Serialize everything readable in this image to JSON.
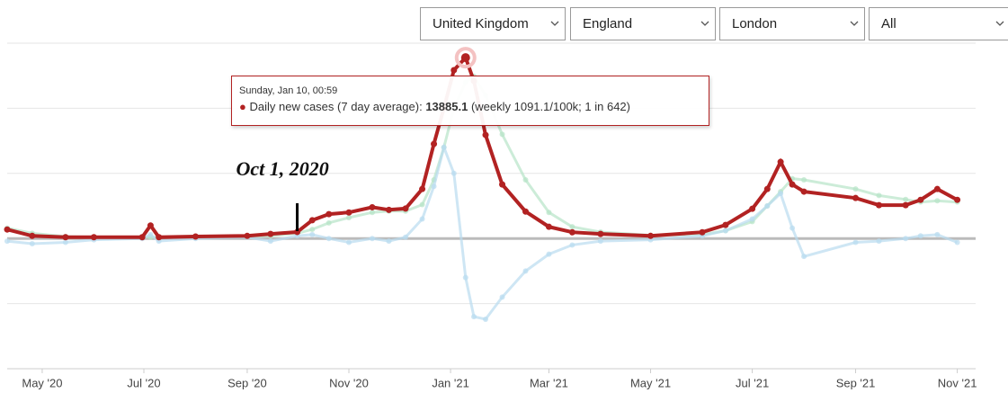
{
  "filters": [
    "United Kingdom",
    "England",
    "London",
    "All"
  ],
  "tooltip": {
    "date": "Sunday, Jan 10, 00:59",
    "label": "Daily new cases (7 day average):",
    "detail": "(weekly 1091.1/100k; 1 in 642)"
  },
  "chart_data": {
    "type": "line",
    "x": [
      "2020-04-10",
      "2020-04-25",
      "2020-05-15",
      "2020-06-01",
      "2020-06-30",
      "2020-07-05",
      "2020-07-10",
      "2020-08-01",
      "2020-09-01",
      "2020-09-15",
      "2020-10-01",
      "2020-10-10",
      "2020-10-20",
      "2020-11-01",
      "2020-11-15",
      "2020-11-25",
      "2020-12-05",
      "2020-12-15",
      "2020-12-22",
      "2020-12-28",
      "2021-01-03",
      "2021-01-10",
      "2021-01-15",
      "2021-01-22",
      "2021-02-01",
      "2021-02-15",
      "2021-03-01",
      "2021-03-15",
      "2021-04-01",
      "2021-05-01",
      "2021-06-01",
      "2021-06-15",
      "2021-07-01",
      "2021-07-10",
      "2021-07-18",
      "2021-07-25",
      "2021-08-01",
      "2021-09-01",
      "2021-09-15",
      "2021-10-01",
      "2021-10-10",
      "2021-10-20",
      "2021-11-01"
    ],
    "series": [
      {
        "color": "#b7e4c7",
        "values": [
          800,
          400,
          150,
          100,
          100,
          100,
          100,
          100,
          150,
          200,
          400,
          700,
          1200,
          1600,
          2000,
          2100,
          2100,
          2600,
          4500,
          7000,
          10000,
          12000,
          12450,
          11000,
          8000,
          4500,
          2000,
          900,
          500,
          250,
          300,
          600,
          1300,
          2500,
          3600,
          4600,
          4500,
          3800,
          3300,
          3000,
          2800,
          2900,
          2800
        ]
      },
      {
        "color": "#b9dcef",
        "values": [
          -200,
          -400,
          -300,
          -100,
          0,
          300,
          -200,
          0,
          100,
          -200,
          200,
          300,
          0,
          -300,
          0,
          -200,
          100,
          1500,
          4000,
          7000,
          5000,
          -3000,
          -6000,
          -6200,
          -4500,
          -2500,
          -1200,
          -500,
          -200,
          -100,
          200,
          600,
          1500,
          2500,
          3460,
          800,
          -1380,
          -300,
          -200,
          0,
          200,
          300,
          -300
        ]
      },
      {
        "color": "#b22222",
        "values": [
          690,
          200,
          100,
          100,
          100,
          1000,
          100,
          150,
          200,
          350,
          500,
          1400,
          1870,
          2000,
          2400,
          2200,
          2300,
          3800,
          7260,
          10030,
          12930,
          13885.1,
          12100,
          7950,
          4150,
          2070,
          900,
          480,
          350,
          200,
          480,
          1040,
          2280,
          3800,
          5880,
          4150,
          3600,
          3110,
          2560,
          2560,
          2970,
          3800,
          2970
        ]
      }
    ],
    "xlim": [
      "2020-04-10",
      "2021-11-12"
    ],
    "xticks": [
      {
        "value": "2020-05-01",
        "label": "May '20"
      },
      {
        "value": "2020-07-01",
        "label": "Jul '20"
      },
      {
        "value": "2020-09-01",
        "label": "Sep '20"
      },
      {
        "value": "2020-11-01",
        "label": "Nov '20"
      },
      {
        "value": "2021-01-01",
        "label": "Jan '21"
      },
      {
        "value": "2021-03-01",
        "label": "Mar '21"
      },
      {
        "value": "2021-05-01",
        "label": "May '21"
      },
      {
        "value": "2021-07-01",
        "label": "Jul '21"
      },
      {
        "value": "2021-09-01",
        "label": "Sep '21"
      },
      {
        "value": "2021-11-01",
        "label": "Nov '21"
      }
    ],
    "ylim": [
      -10000,
      15000
    ],
    "yticks": [
      -5000,
      0,
      5000,
      10000,
      15000
    ],
    "grid": true,
    "highlight": 21,
    "annotation": {
      "text": "Oct 1, 2020",
      "x": "2020-10-01"
    }
  }
}
